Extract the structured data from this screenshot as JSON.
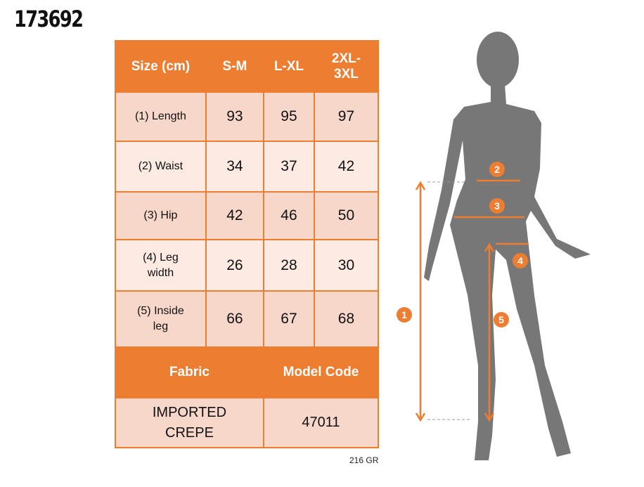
{
  "product_code": "173692",
  "table": {
    "headers": [
      "Size (cm)",
      "S-M",
      "L-XL",
      "2XL-3XL"
    ],
    "rows": [
      {
        "label": "(1) Length",
        "values": [
          "93",
          "95",
          "97"
        ]
      },
      {
        "label": "(2) Waist",
        "values": [
          "34",
          "37",
          "42"
        ]
      },
      {
        "label": "(3) Hip",
        "values": [
          "42",
          "46",
          "50"
        ]
      },
      {
        "label": "(4) Leg width",
        "values": [
          "26",
          "28",
          "30"
        ]
      },
      {
        "label": "(5) Inside leg",
        "values": [
          "66",
          "67",
          "68"
        ]
      }
    ],
    "fabric_header": "Fabric",
    "model_code_header": "Model Code",
    "fabric": "IMPORTED CREPE",
    "model_code": "47011"
  },
  "weight": "216 GR",
  "markers": [
    "1",
    "2",
    "3",
    "4",
    "5"
  ],
  "colors": {
    "accent": "#ED7D31",
    "row_dark": "#F8D7CB",
    "row_light": "#FCEAE3",
    "silhouette": "#777777"
  }
}
